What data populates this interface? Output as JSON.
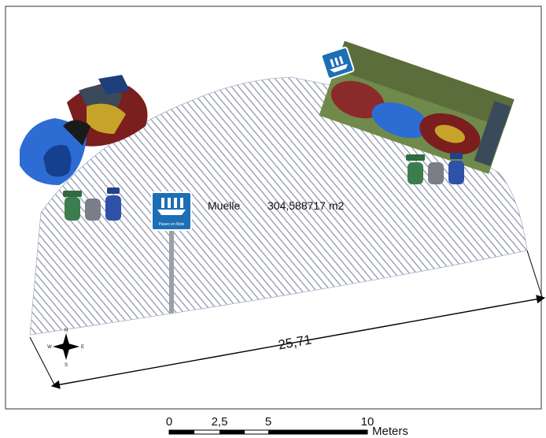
{
  "map": {
    "feature_label": "Muelle",
    "area_value": "304,588717 m2",
    "dimension_label": "25,71",
    "pier_sign_caption": "Paseo en Bote",
    "icons": [
      "kayak-pile-icon",
      "kayak-photo-icon",
      "boat-tour-sign-icon",
      "recycling-bins-icon",
      "north-arrow-icon"
    ]
  },
  "compass": {
    "n": "N",
    "s": "S",
    "e": "E",
    "w": "W"
  },
  "scale_bar": {
    "ticks": [
      "0",
      "2,5",
      "5",
      "10"
    ],
    "unit": "Meters"
  },
  "colors": {
    "hatch": "#8a90a8",
    "frame": "#555555",
    "bin_green": "#3c7d4f",
    "bin_gray": "#7a7e86",
    "bin_blue": "#2e52a8",
    "sign_blue": "#1d6fb5"
  }
}
